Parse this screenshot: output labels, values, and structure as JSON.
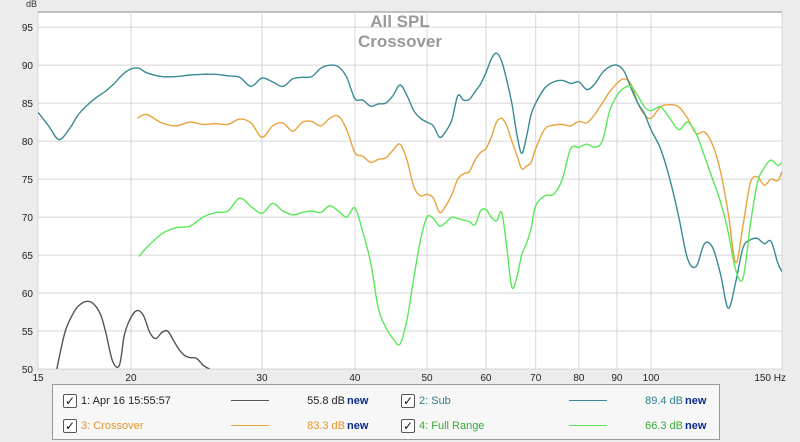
{
  "chart_data": {
    "type": "line",
    "title": "All SPL",
    "subtitle": "Crossover",
    "ylabel": "dB",
    "xlabel": "Hz",
    "xscale": "log",
    "xlim": [
      15,
      150
    ],
    "ylim": [
      50,
      97
    ],
    "grid": true,
    "legend_position": "bottom",
    "x_ticks": [
      15,
      20,
      30,
      40,
      50,
      60,
      70,
      80,
      90,
      100,
      150
    ],
    "x_tick_labels": [
      "15",
      "20",
      "30",
      "40",
      "50",
      "60",
      "70",
      "80",
      "90",
      "100",
      "150 Hz"
    ],
    "y_ticks": [
      50,
      55,
      60,
      65,
      70,
      75,
      80,
      85,
      90,
      95
    ],
    "y_tick_labels": [
      "50",
      "55",
      "60",
      "65",
      "70",
      "75",
      "80",
      "85",
      "90",
      "95"
    ],
    "series": [
      {
        "name": "1: Apr 16 15:55:57",
        "color": "#555555",
        "x": [
          15.9,
          16.3,
          16.7,
          17.0,
          17.4,
          17.8,
          18.2,
          18.5,
          18.9,
          19.3,
          19.6,
          20.0,
          20.4,
          20.8,
          21.2,
          21.6,
          22.0,
          22.4,
          22.8,
          23.2,
          23.6,
          24.0,
          24.5,
          25.0,
          25.5
        ],
        "values": [
          50.0,
          54.8,
          57.2,
          58.3,
          58.9,
          58.6,
          57.2,
          54.8,
          51.0,
          50.5,
          54.5,
          56.8,
          57.7,
          57.0,
          54.8,
          54.0,
          54.8,
          55.0,
          53.8,
          52.6,
          51.8,
          51.5,
          51.4,
          50.5,
          50.0
        ]
      },
      {
        "name": "3: Crossover",
        "color": "#e8a33c",
        "x": [
          20.4,
          21,
          22,
          23,
          24,
          25,
          26,
          27,
          28,
          29,
          30,
          31,
          32,
          33,
          34,
          35,
          36,
          37,
          38,
          39,
          40,
          41,
          42,
          43,
          44,
          45,
          46,
          47,
          48,
          49,
          50,
          51,
          52,
          53,
          54,
          55,
          56,
          57,
          58,
          59,
          60,
          61,
          62,
          63,
          64,
          65,
          66,
          67,
          68,
          69,
          70,
          72,
          74,
          76,
          78,
          80,
          82,
          84,
          86,
          88,
          90,
          92,
          94,
          96,
          98,
          100,
          103,
          106,
          109,
          112,
          115,
          118,
          121,
          124,
          127,
          130,
          133,
          136,
          139,
          142,
          145,
          148,
          150
        ],
        "values": [
          83.0,
          83.5,
          82.4,
          82.0,
          82.5,
          82.2,
          82.3,
          82.2,
          82.9,
          82.4,
          80.5,
          82.0,
          82.4,
          81.3,
          82.5,
          82.6,
          82.0,
          83.0,
          83.3,
          81.5,
          78.5,
          78.0,
          77.2,
          77.6,
          77.8,
          78.8,
          79.6,
          77.5,
          74.0,
          72.8,
          73.0,
          72.5,
          70.6,
          71.5,
          73.0,
          75.0,
          75.7,
          76.0,
          77.5,
          78.5,
          79.0,
          80.5,
          82.5,
          83.0,
          82.0,
          80.0,
          78.2,
          76.4,
          76.7,
          77.2,
          79.0,
          81.6,
          82.1,
          82.2,
          82.0,
          82.6,
          82.4,
          83.5,
          85.0,
          86.5,
          87.6,
          88.2,
          87.5,
          85.0,
          83.5,
          83.0,
          84.5,
          84.8,
          84.5,
          83.0,
          81.0,
          81.2,
          79.5,
          76.0,
          70.5,
          64.0,
          69.0,
          74.5,
          75.3,
          74.2,
          75.0,
          74.8,
          76.0
        ]
      },
      {
        "name": "2: Sub",
        "color": "#3a8a96",
        "x": [
          15,
          15.5,
          16,
          16.5,
          17,
          17.5,
          18,
          18.5,
          19,
          19.5,
          20,
          20.5,
          21,
          22,
          23,
          24,
          25,
          26,
          27,
          28,
          29,
          30,
          31,
          32,
          33,
          34,
          35,
          36,
          37,
          38,
          39,
          40,
          41,
          42,
          43,
          44,
          45,
          46,
          47,
          48,
          49,
          50,
          51,
          52,
          53,
          54,
          55,
          56,
          57,
          58,
          59,
          60,
          61,
          62,
          63,
          64,
          65,
          66,
          67,
          68,
          69,
          70,
          72,
          74,
          76,
          78,
          80,
          82,
          84,
          86,
          88,
          90,
          92,
          94,
          96,
          98,
          100,
          103,
          106,
          109,
          112,
          115,
          118,
          121,
          124,
          127,
          130,
          133,
          136,
          139,
          142,
          145,
          148,
          150
        ],
        "values": [
          83.8,
          82.0,
          80.2,
          81.5,
          83.5,
          84.8,
          85.8,
          86.6,
          87.6,
          88.8,
          89.5,
          89.6,
          89.0,
          88.5,
          88.5,
          88.7,
          88.8,
          88.8,
          88.6,
          88.4,
          87.2,
          88.3,
          87.8,
          87.2,
          88.2,
          88.4,
          88.5,
          89.6,
          90.0,
          89.8,
          88.4,
          85.6,
          85.4,
          84.6,
          84.9,
          85.0,
          86.0,
          87.4,
          86.0,
          84.0,
          83.0,
          82.5,
          82.0,
          80.5,
          81.3,
          82.8,
          86.0,
          85.4,
          85.5,
          86.5,
          87.5,
          89.0,
          90.8,
          91.6,
          90.5,
          88.0,
          85.0,
          81.0,
          78.4,
          80.5,
          83.5,
          85.0,
          87.0,
          87.8,
          88.0,
          87.6,
          87.8,
          86.8,
          87.5,
          89.0,
          89.8,
          90.0,
          89.2,
          87.0,
          85.0,
          83.6,
          81.5,
          79.0,
          75.0,
          70.0,
          64.5,
          63.5,
          66.5,
          66.0,
          62.5,
          58.0,
          61.5,
          66.0,
          67.0,
          67.2,
          66.5,
          66.8,
          64.0,
          62.8
        ]
      },
      {
        "name": "4: Full Range",
        "color": "#5ae85a",
        "x": [
          20.5,
          21,
          22,
          23,
          24,
          25,
          26,
          27,
          28,
          29,
          30,
          31,
          32,
          33,
          34,
          35,
          36,
          37,
          38,
          39,
          40,
          41,
          42,
          43,
          44,
          45,
          46,
          47,
          48,
          49,
          50,
          51,
          52,
          53,
          54,
          55,
          56,
          57,
          58,
          59,
          60,
          61,
          62,
          63,
          64,
          65,
          66,
          67,
          68,
          69,
          70,
          72,
          74,
          76,
          78,
          80,
          82,
          84,
          86,
          88,
          90,
          92,
          94,
          96,
          98,
          100,
          103,
          106,
          109,
          112,
          115,
          118,
          121,
          124,
          127,
          130,
          133,
          136,
          139,
          142,
          145,
          148,
          150
        ],
        "values": [
          64.8,
          66.0,
          67.8,
          68.6,
          68.8,
          70.0,
          70.6,
          70.8,
          72.5,
          71.4,
          70.5,
          71.8,
          70.8,
          70.3,
          70.6,
          70.8,
          70.6,
          71.5,
          70.8,
          70.0,
          71.2,
          68.0,
          64.0,
          58.0,
          55.5,
          54.0,
          53.3,
          56.5,
          62.0,
          67.0,
          70.0,
          69.8,
          68.8,
          69.3,
          70.0,
          69.8,
          69.6,
          69.4,
          69.0,
          70.8,
          71.0,
          70.0,
          69.5,
          70.6,
          66.0,
          60.8,
          62.0,
          65.0,
          66.5,
          68.5,
          71.5,
          72.8,
          73.0,
          75.0,
          79.0,
          79.2,
          79.6,
          79.2,
          80.0,
          84.0,
          86.0,
          87.0,
          87.2,
          86.0,
          84.5,
          84.0,
          84.5,
          83.0,
          81.5,
          82.5,
          81.0,
          78.0,
          75.0,
          72.0,
          68.0,
          63.0,
          62.0,
          69.0,
          74.5,
          76.5,
          77.5,
          76.8,
          77.2
        ]
      }
    ]
  },
  "legend": {
    "items": [
      {
        "label": "1: Apr 16 15:55:57",
        "color": "#555555",
        "label_color": "#222222",
        "value": "55.8 dB",
        "new": "new"
      },
      {
        "label": "2: Sub",
        "color": "#3a8a96",
        "label_color": "#2f7f8c",
        "value": "89.4 dB",
        "new": "new"
      },
      {
        "label": "3: Crossover",
        "color": "#e8a33c",
        "label_color": "#e0962c",
        "value": "83.3 dB",
        "new": "new"
      },
      {
        "label": "4: Full Range",
        "color": "#5ae85a",
        "label_color": "#3aa83a",
        "value": "66.3 dB",
        "new": "new"
      }
    ]
  }
}
